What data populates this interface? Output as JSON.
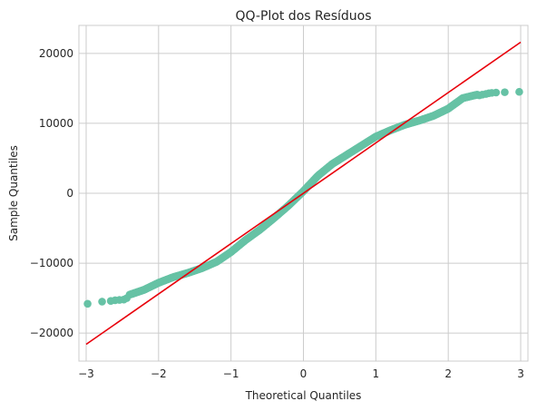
{
  "chart_data": {
    "type": "scatter",
    "title": "QQ-Plot dos Resíduos",
    "xlabel": "Theoretical Quantiles",
    "ylabel": "Sample Quantiles",
    "xlim": [
      -3.1,
      3.1
    ],
    "ylim": [
      -24000,
      24000
    ],
    "xticks": [
      -3,
      -2,
      -1,
      0,
      1,
      2,
      3
    ],
    "xtick_labels": [
      "−3",
      "−2",
      "−1",
      "0",
      "1",
      "2",
      "3"
    ],
    "yticks": [
      -20000,
      -10000,
      0,
      10000,
      20000
    ],
    "ytick_labels": [
      "−20000",
      "−10000",
      "0",
      "10000",
      "20000"
    ],
    "grid": true,
    "point_color": "#66c2a5",
    "line_color": "#e8000b",
    "reference_line": {
      "x": [
        -3.0,
        3.0
      ],
      "y": [
        -21600,
        21600
      ]
    },
    "quantile_curve": {
      "x": [
        -2.4,
        -2.2,
        -2.0,
        -1.8,
        -1.6,
        -1.4,
        -1.2,
        -1.0,
        -0.8,
        -0.6,
        -0.4,
        -0.2,
        0.0,
        0.2,
        0.4,
        0.6,
        0.8,
        1.0,
        1.2,
        1.4,
        1.6,
        1.8,
        2.0,
        2.2,
        2.4
      ],
      "y": [
        -14500,
        -13800,
        -12800,
        -12000,
        -11400,
        -10700,
        -9800,
        -8400,
        -6700,
        -5200,
        -3500,
        -1700,
        300,
        2500,
        4200,
        5500,
        6800,
        8100,
        9000,
        9800,
        10400,
        11100,
        12100,
        13600,
        14100
      ]
    },
    "tail_points": {
      "x": [
        -2.98,
        -2.78,
        -2.66,
        -2.6,
        -2.54,
        -2.48,
        -2.44,
        2.43,
        2.47,
        2.52,
        2.56,
        2.6,
        2.66,
        2.78,
        2.98
      ],
      "y": [
        -15800,
        -15500,
        -15400,
        -15300,
        -15250,
        -15200,
        -15000,
        14000,
        14100,
        14200,
        14300,
        14350,
        14400,
        14450,
        14500
      ]
    }
  }
}
